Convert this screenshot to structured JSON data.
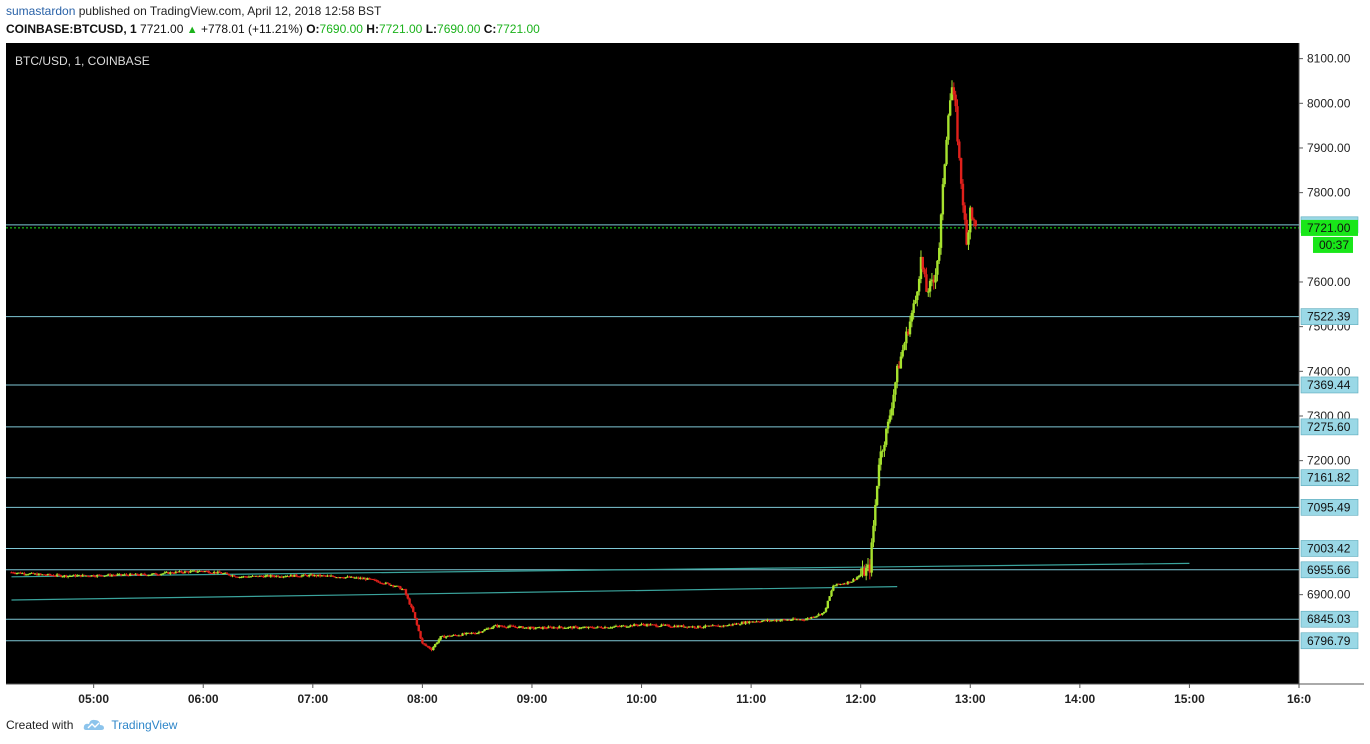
{
  "header": {
    "author": "sumastardon",
    "published": "published on TradingView.com, April 12, 2018 12:58 BST",
    "symbol": "COINBASE:BTCUSD, 1",
    "last": "7721.00",
    "change": "+778.01 (+11.21%)",
    "o_label": "O:",
    "o_value": "7690.00",
    "h_label": "H:",
    "h_value": "7721.00",
    "l_label": "L:",
    "l_value": "7690.00",
    "c_label": "C:",
    "c_value": "7721.00"
  },
  "footer": {
    "created_with": "Created with",
    "brand": "TradingView"
  },
  "colors": {
    "background": "#000000",
    "bull": "#a6e22e",
    "bear": "#e0201b",
    "hline": "#7fc8d6",
    "hline_label_bg": "#9ad8e6",
    "last_price_bg": "#19e619",
    "axis_bg": "#ffffff",
    "trendline": "#3aa39c"
  },
  "chart_data": {
    "type": "candlestick",
    "title": "BTC/USD, 1, COINBASE",
    "x_ticks": [
      "05:00",
      "06:00",
      "07:00",
      "08:00",
      "09:00",
      "10:00",
      "11:00",
      "12:00",
      "13:00",
      "14:00",
      "15:00",
      "16:0"
    ],
    "x_tick_hours": [
      5,
      6,
      7,
      8,
      9,
      10,
      11,
      12,
      13,
      14,
      15,
      16
    ],
    "x_range_hours": [
      4.2,
      16.0
    ],
    "y_ticks": [
      "8100.00",
      "8000.00",
      "7900.00",
      "7800.00",
      "7600.00",
      "7500.00",
      "7400.00",
      "7300.00",
      "7200.00",
      "6900.00"
    ],
    "y_range": [
      6700,
      8135
    ],
    "horizontal_levels": [
      "7727.96",
      "7522.39",
      "7369.44",
      "7275.60",
      "7161.82",
      "7095.49",
      "7003.42",
      "6955.66",
      "6845.03",
      "6796.79"
    ],
    "last_price": "7721.00",
    "countdown": "00:37",
    "trendlines": [
      {
        "from": [
          "04:15",
          6940
        ],
        "to": [
          "15:00",
          6970
        ]
      },
      {
        "from": [
          "04:15",
          6888
        ],
        "to": [
          "12:20",
          6918
        ]
      }
    ],
    "price_path": [
      [
        "04:15",
        6950
      ],
      [
        "04:30",
        6945
      ],
      [
        "04:45",
        6942
      ],
      [
        "05:00",
        6943
      ],
      [
        "05:15",
        6944
      ],
      [
        "05:30",
        6945
      ],
      [
        "05:45",
        6950
      ],
      [
        "06:00",
        6953
      ],
      [
        "06:10",
        6948
      ],
      [
        "06:20",
        6940
      ],
      [
        "06:40",
        6942
      ],
      [
        "07:00",
        6943
      ],
      [
        "07:15",
        6940
      ],
      [
        "07:30",
        6935
      ],
      [
        "07:45",
        6920
      ],
      [
        "07:50",
        6910
      ],
      [
        "07:55",
        6860
      ],
      [
        "08:00",
        6790
      ],
      [
        "08:05",
        6778
      ],
      [
        "08:10",
        6805
      ],
      [
        "08:20",
        6810
      ],
      [
        "08:30",
        6815
      ],
      [
        "08:40",
        6830
      ],
      [
        "08:50",
        6828
      ],
      [
        "09:00",
        6825
      ],
      [
        "09:15",
        6827
      ],
      [
        "09:30",
        6826
      ],
      [
        "09:45",
        6828
      ],
      [
        "10:00",
        6833
      ],
      [
        "10:15",
        6830
      ],
      [
        "10:30",
        6828
      ],
      [
        "10:45",
        6830
      ],
      [
        "11:00",
        6840
      ],
      [
        "11:15",
        6843
      ],
      [
        "11:30",
        6845
      ],
      [
        "11:40",
        6860
      ],
      [
        "11:45",
        6920
      ],
      [
        "11:55",
        6930
      ],
      [
        "12:05",
        6960
      ],
      [
        "12:08",
        7100
      ],
      [
        "12:10",
        7200
      ],
      [
        "12:15",
        7280
      ],
      [
        "12:20",
        7400
      ],
      [
        "12:25",
        7480
      ],
      [
        "12:30",
        7560
      ],
      [
        "12:33",
        7650
      ],
      [
        "12:36",
        7580
      ],
      [
        "12:40",
        7600
      ],
      [
        "12:43",
        7680
      ],
      [
        "12:46",
        7870
      ],
      [
        "12:48",
        7985
      ],
      [
        "12:50",
        8035
      ],
      [
        "12:52",
        7980
      ],
      [
        "12:54",
        7870
      ],
      [
        "12:56",
        7780
      ],
      [
        "12:58",
        7680
      ],
      [
        "13:00",
        7770
      ],
      [
        "13:02",
        7730
      ],
      [
        "13:03",
        7721
      ]
    ]
  }
}
